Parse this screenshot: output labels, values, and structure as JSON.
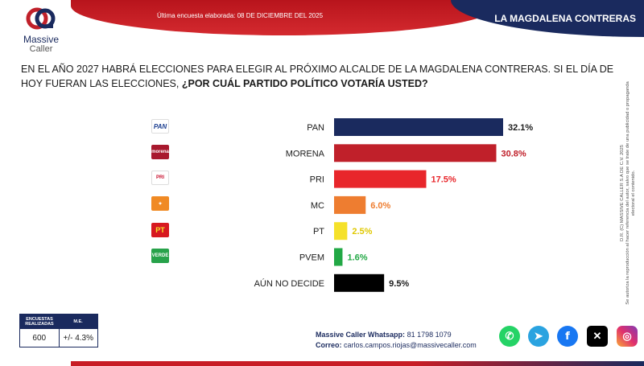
{
  "header": {
    "survey_date": "Última encuesta elaborada: 08 DE DICIEMBRE DEL 2025",
    "region": "LA MAGDALENA CONTRERAS"
  },
  "brand": {
    "name_line1": "Massive",
    "name_line2": "Caller"
  },
  "question": {
    "plain": "EN EL AÑO 2027 HABRÁ ELECCIONES PARA ELEGIR AL PRÓXIMO ALCALDE DE LA MAGDALENA CONTRERAS. SI EL DÍA DE HOY FUERAN LAS ELECCIONES,",
    "bold": "¿POR CUÁL PARTIDO POLÍTICO VOTARÍA USTED?"
  },
  "legal": {
    "line1": "D.R. (C) MASSIVE CALLER S.A DE C.V. 2025",
    "line2": "Se autoriza la reproducción al hacer referencia del autor, salvo que se trate de una publicidad o propaganda electoral el contenido."
  },
  "chart_data": {
    "type": "bar",
    "orientation": "horizontal",
    "categories": [
      "PAN",
      "MORENA",
      "PRI",
      "MC",
      "PT",
      "PVEM",
      "AÚN NO DECIDE"
    ],
    "values": [
      32.1,
      30.8,
      17.5,
      6.0,
      2.5,
      1.6,
      9.5
    ],
    "value_labels": [
      "32.1%",
      "30.8%",
      "17.5%",
      "6.0%",
      "2.5%",
      "1.6%",
      "9.5%"
    ],
    "colors": [
      "#1a2a5e",
      "#c0202a",
      "#e8262b",
      "#ee7d30",
      "#f5e12a",
      "#22a845",
      "#000000"
    ],
    "label_colors": [
      "#1b1b1b",
      "#c0202a",
      "#e8262b",
      "#ee7d30",
      "#e0c800",
      "#22a845",
      "#1b1b1b"
    ],
    "xlim": [
      0,
      35
    ],
    "unit": "%"
  },
  "party_logos": [
    {
      "icon": "pan-logo",
      "text": "PAN",
      "bg": "#ffffff",
      "fg": "#1a3d8f"
    },
    {
      "icon": "morena-logo",
      "text": "morena",
      "bg": "#a8192e",
      "fg": "#ffffff"
    },
    {
      "icon": "pri-logo",
      "text": "PRI",
      "bg": "#ffffff",
      "fg": "#c8102e"
    },
    {
      "icon": "mc-logo",
      "text": "",
      "bg": "#f08a24",
      "fg": "#ffffff"
    },
    {
      "icon": "pt-logo",
      "text": "PT",
      "bg": "#d71920",
      "fg": "#f5e12a"
    },
    {
      "icon": "verde-logo",
      "text": "VERDE",
      "bg": "#27a24a",
      "fg": "#ffffff"
    }
  ],
  "stats": {
    "col1_header": "ENCUESTAS REALIZADAS",
    "col2_header": "M.E.",
    "col1_value": "600",
    "col2_value": "+/- 4.3%"
  },
  "contact": {
    "whatsapp_label": "Massive Caller Whatsapp:",
    "whatsapp_value": "81 1798 1079",
    "email_label": "Correo:",
    "email_value": "carlos.campos.riojas@massivecaller.com"
  },
  "social_icons": [
    "whatsapp-icon",
    "telegram-icon",
    "facebook-icon",
    "x-icon",
    "instagram-icon"
  ]
}
